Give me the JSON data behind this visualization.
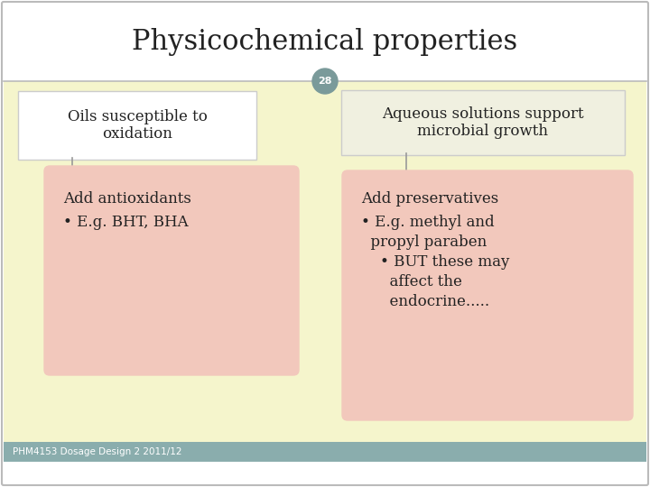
{
  "title": "Physicochemical properties",
  "slide_number": "28",
  "bg_cream": "#f5f5cc",
  "bg_white": "#ffffff",
  "slide_border_color": "#bbbbbb",
  "top_box_left_text": "Oils susceptible to\noxidation",
  "top_box_right_text": "Aqueous solutions support\nmicrobial growth",
  "bottom_box_left_title": "Add antioxidants",
  "bottom_box_left_bullet": "• E.g. BHT, BHA",
  "bottom_box_right_title": "Add preservatives",
  "bottom_box_right_line1": "• E.g. methyl and",
  "bottom_box_right_line2": "  propyl paraben",
  "bottom_box_right_line3": "    • BUT these may",
  "bottom_box_right_line4": "      affect the",
  "bottom_box_right_line5": "      endocrine.....",
  "top_box_bg": "#ffffff",
  "top_box_right_bg": "#f0f0e0",
  "bottom_box_bg": "#f2c8bc",
  "number_circle_color": "#7a9a9a",
  "number_text_color": "#ffffff",
  "footer_bg": "#8aadad",
  "footer_text": "PHM4153 Dosage Design 2 2011/12",
  "footer_text_color": "#ffffff",
  "title_color": "#222222",
  "body_text_color": "#222222",
  "connector_color": "#999999"
}
